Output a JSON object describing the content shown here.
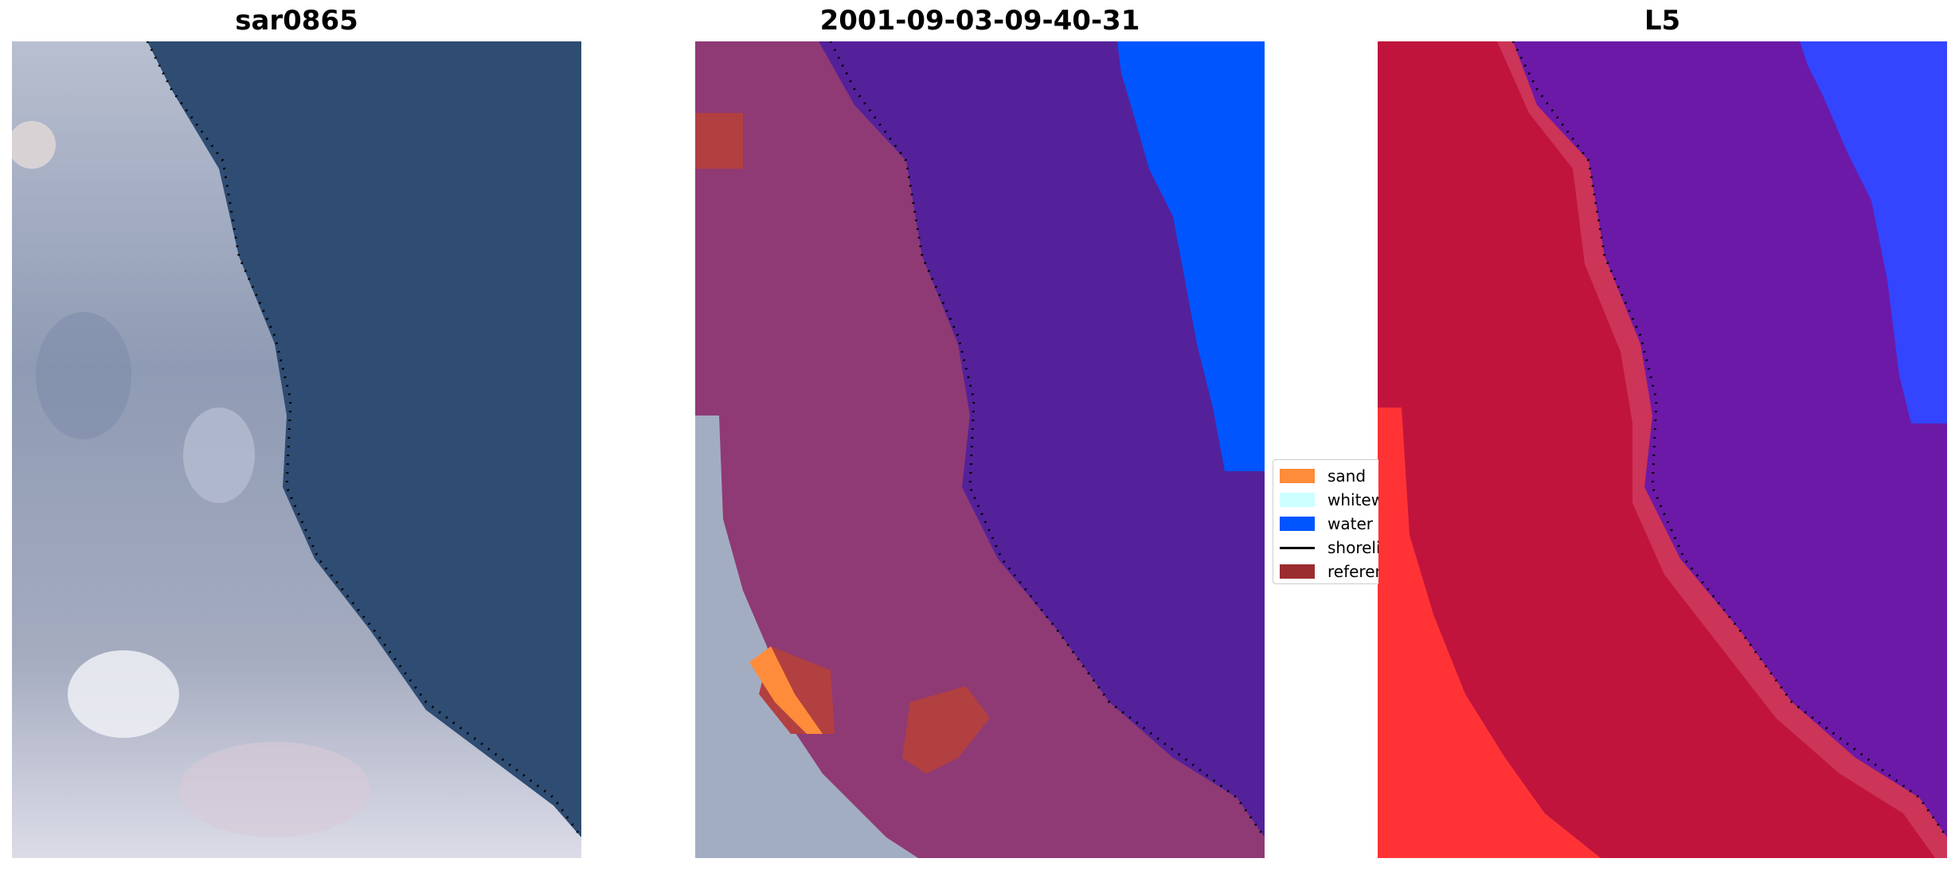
{
  "panels": [
    {
      "title": "sar0865"
    },
    {
      "title": "2001-09-03-09-40-31"
    },
    {
      "title": "L5"
    }
  ],
  "legend": {
    "items": [
      {
        "label": "sand",
        "color": "#ff8c3a"
      },
      {
        "label": "whitewater",
        "color": "#ccffff"
      },
      {
        "label": "water",
        "color": "#0055ff"
      },
      {
        "label": "shoreline",
        "color": "#000000"
      },
      {
        "label": "reference",
        "color": "#9b2d30"
      }
    ]
  },
  "colors": {
    "sea_rgb": "#2f4c72",
    "land_rgb": "#a9b3c7",
    "land_class": "#8f3a74",
    "water_class": "#54219a",
    "ocean_class": "#0055ff",
    "land_l5": "#c0143c",
    "water_l5": "#6c19a8",
    "ocean_l5": "#3345ff",
    "bright_l5": "#ff3335"
  }
}
